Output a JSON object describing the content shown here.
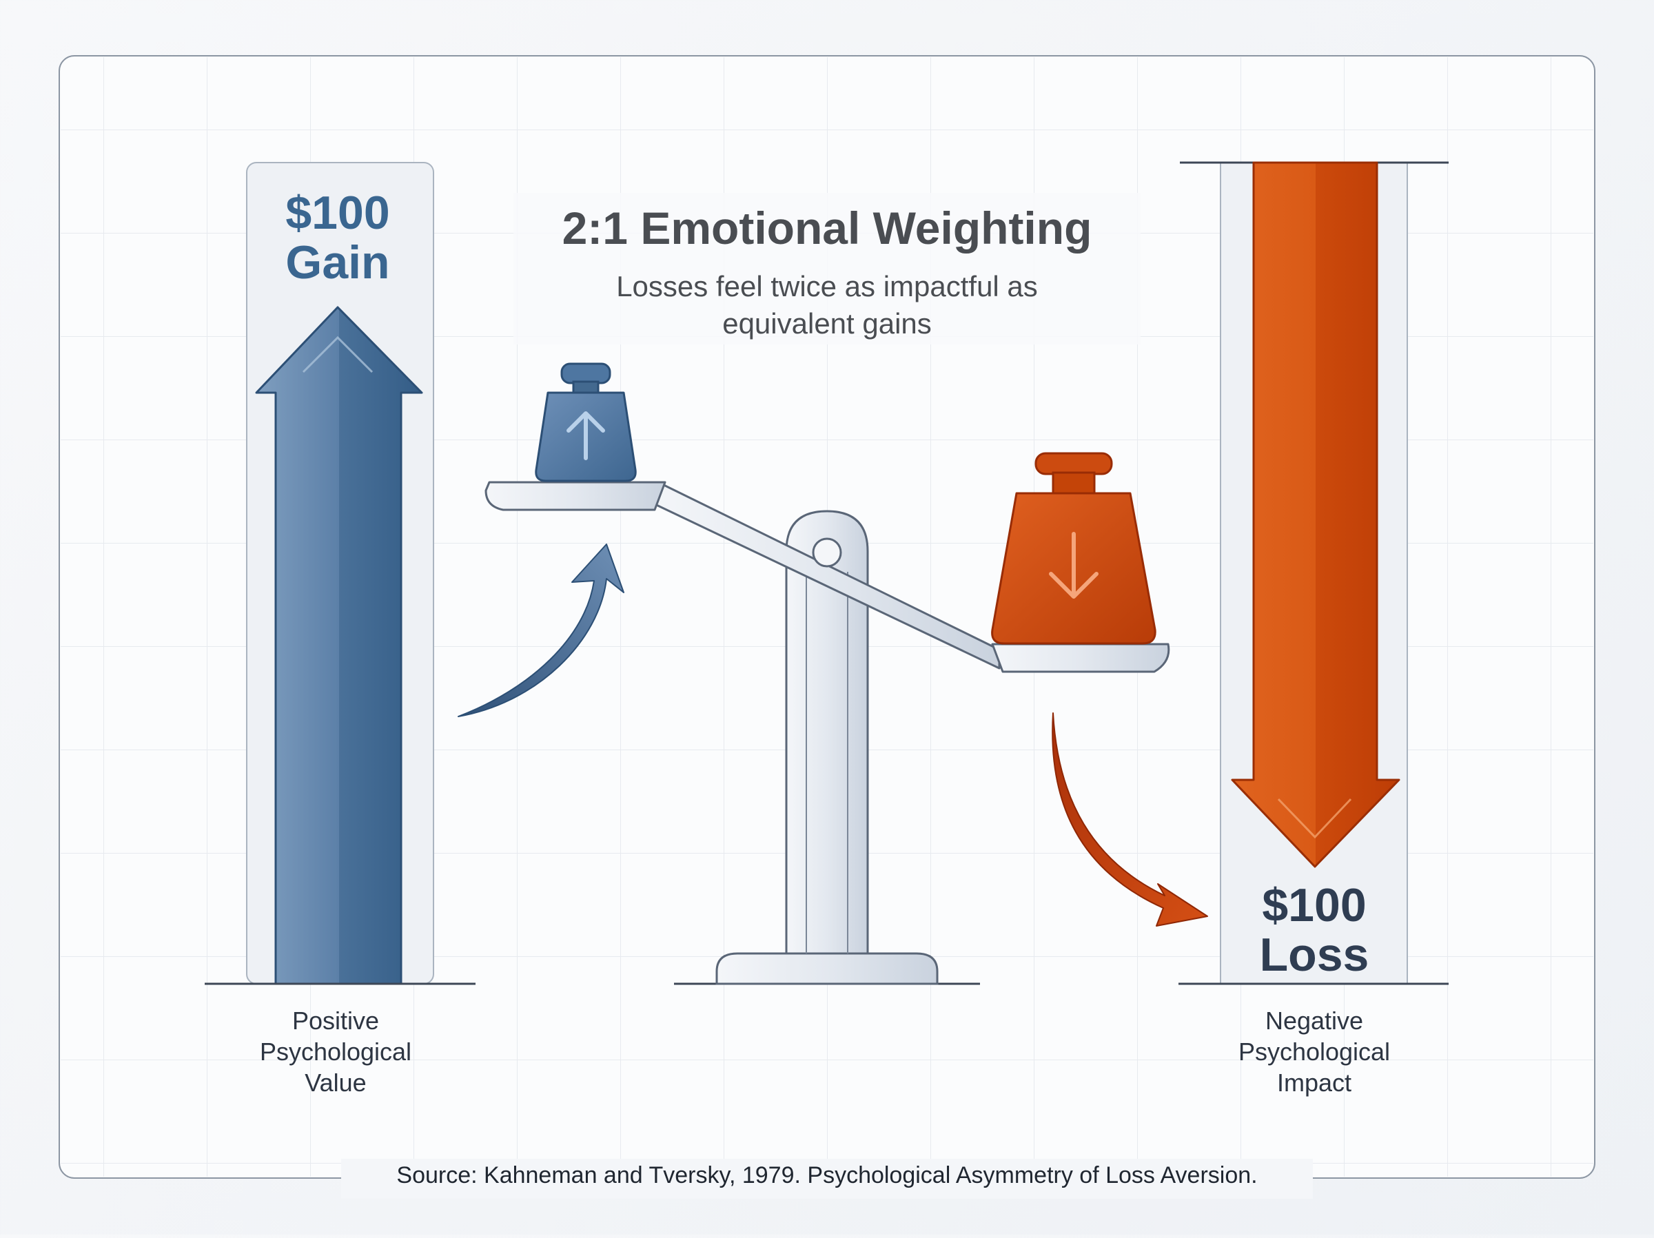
{
  "title": "2:1 Emotional Weighting",
  "subtitle_lines": [
    "Losses feel twice as impactful as",
    "equivalent gains"
  ],
  "gain": {
    "amount": "$100",
    "word": "Gain",
    "caption_lines": [
      "Positive",
      "Psychological",
      "Value"
    ],
    "color": "#3f6b94"
  },
  "loss": {
    "amount": "$100",
    "word": "Loss",
    "caption_lines": [
      "Negative",
      "Psychological",
      "Impact"
    ],
    "color": "#cf4a12"
  },
  "ratio": "2:1",
  "icons": {
    "gain_weight": "up-arrow-weight",
    "loss_weight": "down-arrow-weight",
    "balance": "balance-scale"
  },
  "source": "Source: Kahneman and Tversky, 1979. Psychological Asymmetry of Loss Aversion."
}
